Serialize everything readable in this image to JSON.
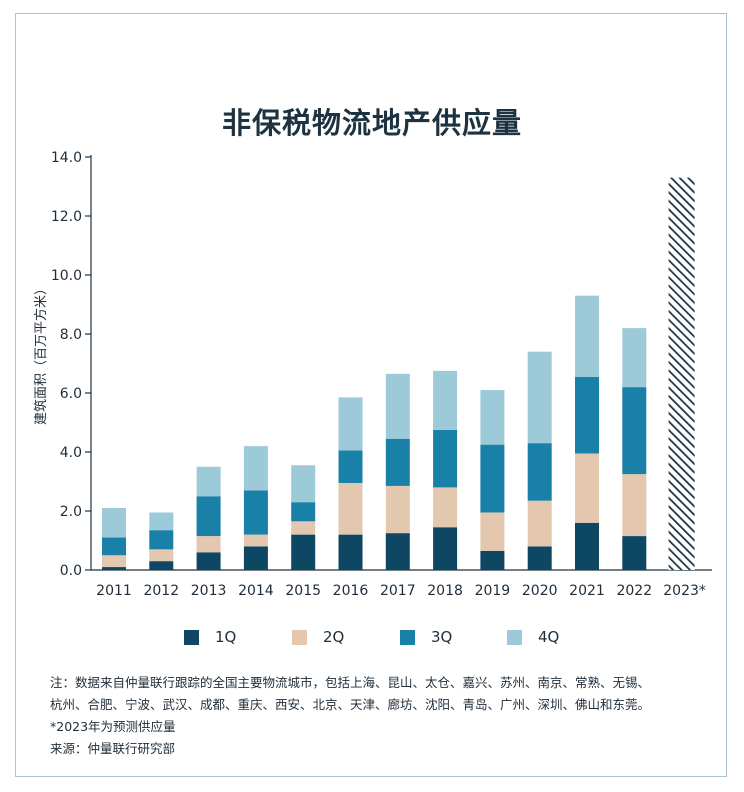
{
  "title": "非保税物流地产供应量",
  "chart_data": {
    "type": "bar",
    "stacked": true,
    "categories": [
      "2011",
      "2012",
      "2013",
      "2014",
      "2015",
      "2016",
      "2017",
      "2018",
      "2019",
      "2020",
      "2021",
      "2022",
      "2023*"
    ],
    "series": [
      {
        "name": "1Q",
        "color": "#0e4763",
        "values": [
          0.1,
          0.3,
          0.6,
          0.8,
          1.2,
          1.2,
          1.25,
          1.45,
          0.65,
          0.8,
          1.6,
          1.15,
          null
        ]
      },
      {
        "name": "2Q",
        "color": "#e3c7ae",
        "values": [
          0.4,
          0.4,
          0.55,
          0.4,
          0.45,
          1.75,
          1.6,
          1.35,
          1.3,
          1.55,
          2.35,
          2.1,
          null
        ]
      },
      {
        "name": "3Q",
        "color": "#1980a8",
        "values": [
          0.6,
          0.65,
          1.35,
          1.5,
          0.65,
          1.1,
          1.6,
          1.95,
          2.3,
          1.95,
          2.6,
          2.95,
          null
        ]
      },
      {
        "name": "4Q",
        "color": "#9ccad9",
        "values": [
          1.0,
          0.6,
          1.0,
          1.5,
          1.25,
          1.8,
          2.2,
          2.0,
          1.85,
          3.1,
          2.75,
          2.0,
          null
        ]
      }
    ],
    "forecast": {
      "category": "2023*",
      "total": 13.3,
      "pattern": "diagonal-hatch",
      "color": "#1d3342"
    },
    "ylabel": "建筑面积（百万平方米）",
    "ylim": [
      0,
      14
    ],
    "yticks": [
      "0.0",
      "2.0",
      "4.0",
      "6.0",
      "8.0",
      "10.0",
      "12.0",
      "14.0"
    ],
    "grid": false,
    "legend_position": "bottom"
  },
  "notes": {
    "line1": "注：数据来自仲量联行跟踪的全国主要物流城市，包括上海、昆山、太仓、嘉兴、苏州、南京、常熟、无锡、",
    "line2": "杭州、合肥、宁波、武汉、成都、重庆、西安、北京、天津、廊坊、沈阳、青岛、广州、深圳、佛山和东莞。",
    "forecast_note": "*2023年为预测供应量",
    "source": "来源：仲量联行研究部"
  }
}
